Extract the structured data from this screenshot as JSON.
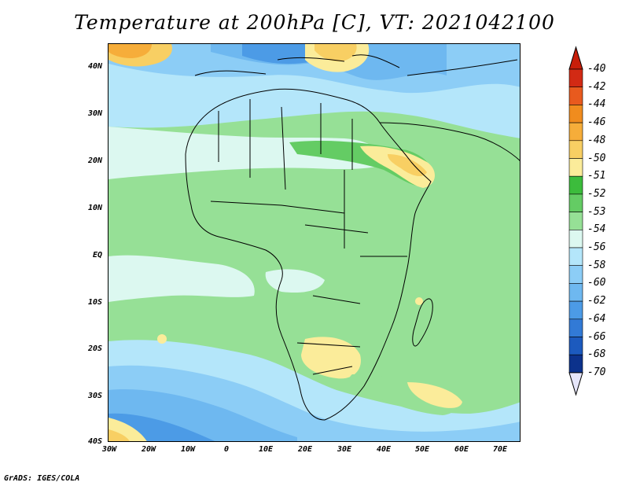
{
  "title": "Temperature at 200hPa [C], VT: 2021042100",
  "footer": "GrADS: IGES/COLA",
  "y_axis_labels": [
    "40N",
    "30N",
    "20N",
    "10N",
    "EQ",
    "10S",
    "20S",
    "30S",
    "40S"
  ],
  "x_axis_labels": [
    "30W",
    "20W",
    "10W",
    "0",
    "10E",
    "20E",
    "30E",
    "40E",
    "50E",
    "60E",
    "70E"
  ],
  "colorbar": {
    "labels": [
      "-40",
      "-42",
      "-44",
      "-46",
      "-48",
      "-50",
      "-51",
      "-52",
      "-53",
      "-54",
      "-56",
      "-58",
      "-60",
      "-62",
      "-64",
      "-66",
      "-68",
      "-70"
    ],
    "colors": [
      "#d22a14",
      "#e85a1e",
      "#f08c1e",
      "#f6ad3a",
      "#f8cf63",
      "#fbec9a",
      "#3cbc3c",
      "#64cc64",
      "#96e096",
      "#dcf8f0",
      "#b4e6fa",
      "#8ccdf6",
      "#6eb8f0",
      "#4c9be6",
      "#327ad6",
      "#1c5abe",
      "#0c328c"
    ],
    "tip_top": "#c81e0a",
    "tip_bottom": "#e6e6fa"
  },
  "palette": {
    "land_ocean_base": "#96e096",
    "warm_yellow": "#fbec9a",
    "warm_orange": "#f6ad3a",
    "cold_blue": "#6eb8f0",
    "deep_blue": "#327ad6",
    "light_cyan": "#dcf8f0",
    "green": "#64cc64"
  }
}
